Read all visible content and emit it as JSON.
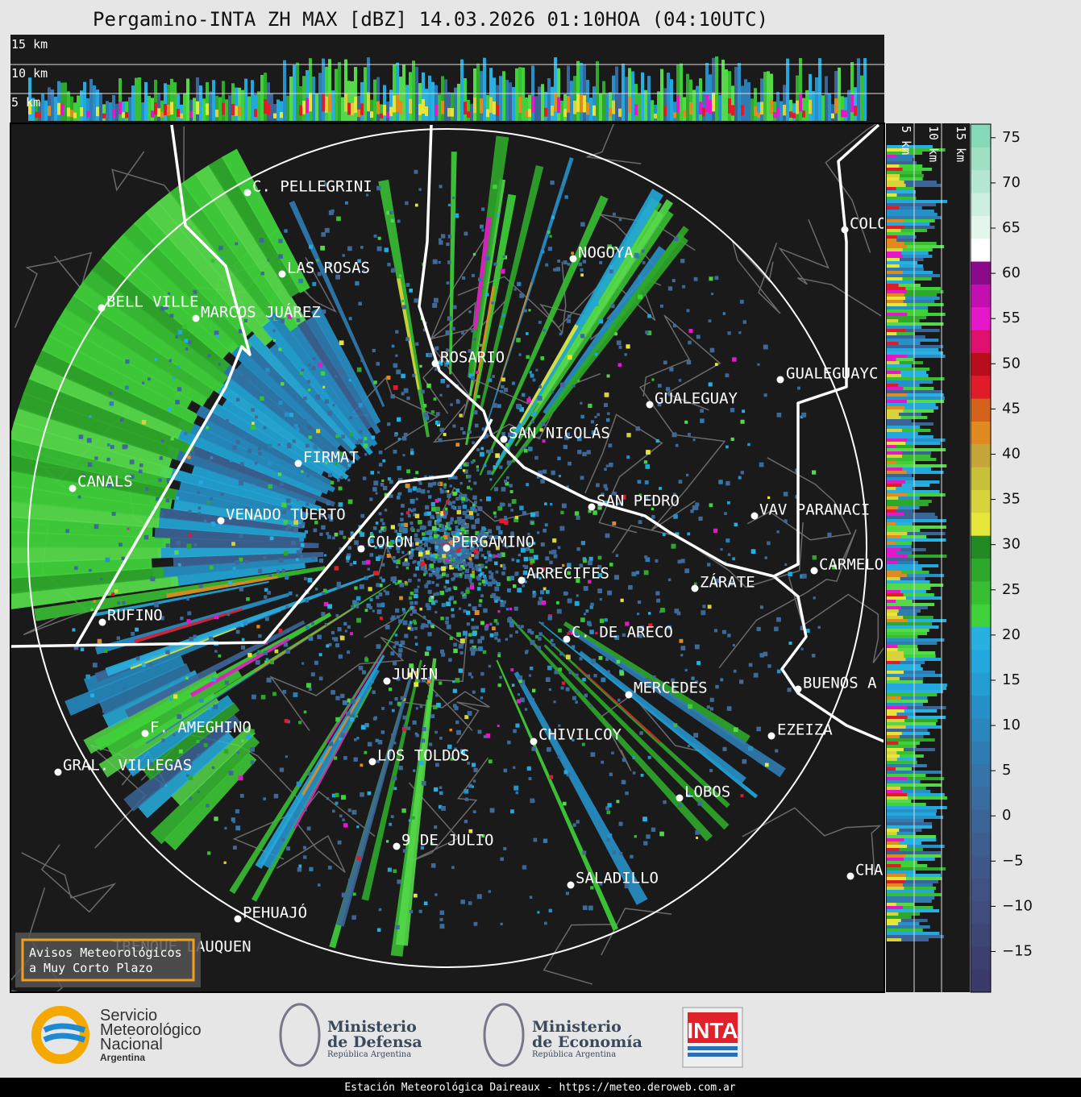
{
  "title": "Pergamino-INTA ZH MAX [dBZ] 14.03.2026 01:10HOA (04:10UTC)",
  "top_section": {
    "height_labels": [
      "15 km",
      "10 km",
      "5 km"
    ]
  },
  "side_section": {
    "height_labels": [
      "5 km",
      "10 km",
      "15 km"
    ]
  },
  "cities": [
    "C. PELLEGRINI",
    "LAS ROSAS",
    "BELL VILLE",
    "MARCOS JUÁREZ",
    "NOGOYA",
    "ROSARIO",
    "GUALEGUAYC",
    "GUALEGUAY",
    "SAN NICOLÁS",
    "FIRMAT",
    "CANALS",
    "VENADO TUERTO",
    "SAN PEDRO",
    "VAV PARANACI",
    "COLON",
    "PERGAMINO",
    "CARMELO",
    "ARRECIFES",
    "ZÁRATE",
    "RUFINO",
    "C. DE ARECO",
    "BUENOS A",
    "JUNÍN",
    "MERCEDES",
    "F. AMEGHINO",
    "EZEIZA",
    "CHIVILCOY",
    "LOS TOLDOS",
    "GRAL. VILLEGAS",
    "LOBOS",
    "9 DE JULIO",
    "SALADILLO",
    "CHA",
    "PEHUAJÓ",
    "TRENQUE LAUQUEN",
    "COLO"
  ],
  "warning_box": [
    "Avisos Meteorológicos",
    "a Muy Corto Plazo"
  ],
  "colorbar": {
    "clim": [
      -19.5,
      76.5
    ],
    "ticks": [
      75,
      70,
      65,
      60,
      55,
      50,
      45,
      40,
      35,
      30,
      25,
      20,
      15,
      10,
      5,
      0,
      {
        "value": -5,
        "label": "−5"
      },
      {
        "value": -10,
        "label": "−10"
      },
      {
        "value": -15,
        "label": "−15"
      }
    ],
    "colors": [
      "#3b3a6a",
      "#3d3f70",
      "#3e4676",
      "#3f4c7c",
      "#405283",
      "#3f5889",
      "#3e5e90",
      "#3c6597",
      "#3a6c9f",
      "#3673a8",
      "#2f7cb2",
      "#2a86bd",
      "#2691c8",
      "#239dd2",
      "#22a8dc",
      "#27b0e0",
      "#3fd13a",
      "#37be33",
      "#2ea82b",
      "#228a22",
      "#e6e63a",
      "#d8d33a",
      "#c9c03a",
      "#c6a638",
      "#e08a1f",
      "#d4621a",
      "#e01b2a",
      "#b80e1c",
      "#e0106e",
      "#e418c8",
      "#c40fb0",
      "#8a0a8a",
      "#ffffff",
      "#e3f6ec",
      "#ccefdf",
      "#b5e8d2",
      "#9fe0c5",
      "#85d8b8"
    ]
  },
  "logos": {
    "smn": [
      "Servicio",
      "Meteorológico",
      "Nacional",
      "Argentina"
    ],
    "defensa": [
      "Ministerio",
      "de Defensa",
      "República Argentina"
    ],
    "economia": [
      "Ministerio",
      "de Economía",
      "República Argentina"
    ],
    "inta": "INTA"
  },
  "footer": "Estación Meteorológica Daireaux - https://meteo.deroweb.com.ar"
}
